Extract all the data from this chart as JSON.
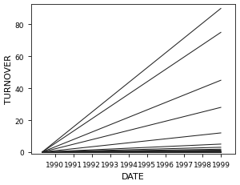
{
  "title": "",
  "xlabel": "DATE",
  "ylabel": "TURNOVER",
  "xlim": [
    1988.7,
    1999.8
  ],
  "ylim": [
    -1,
    93
  ],
  "xticks": [
    1990,
    1991,
    1992,
    1993,
    1994,
    1995,
    1996,
    1997,
    1998,
    1999
  ],
  "yticks": [
    0,
    20,
    40,
    60,
    80
  ],
  "start_year": 1989.3,
  "end_year": 1999.0,
  "line_final_values": [
    90,
    75,
    45,
    28,
    12,
    5,
    3,
    1.8,
    1.2,
    0.8,
    0.5,
    0.3,
    0.15,
    0.08,
    0.04,
    0.02,
    0.01
  ],
  "line_color": "#222222",
  "background_color": "#ffffff",
  "figure_background": "#ffffff",
  "tick_label_fontsize": 6.5,
  "axis_label_fontsize": 8,
  "linewidth": 0.75
}
